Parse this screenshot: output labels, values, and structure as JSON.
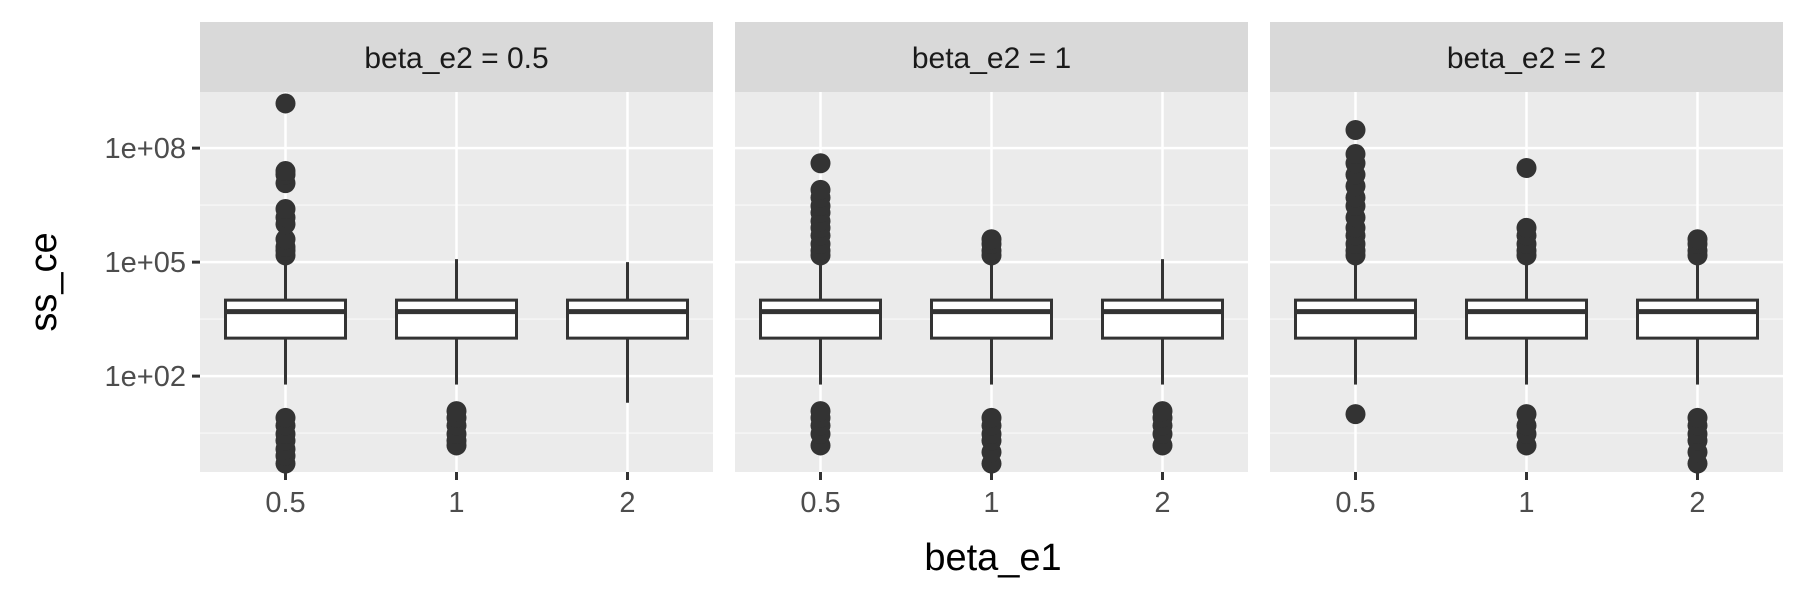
{
  "chart_data": {
    "type": "boxplot",
    "facet_variable": "beta_e2",
    "xlabel": "beta_e1",
    "ylabel": "ss_ce",
    "y_scale": "log10",
    "y_ticks": [
      100,
      100000,
      100000000
    ],
    "y_tick_labels": [
      "1e+02",
      "1e+05",
      "1e+08"
    ],
    "ylim": [
      0.3,
      3000000000
    ],
    "grid": true,
    "categories": [
      "0.5",
      "1",
      "2"
    ],
    "facets": [
      {
        "strip": "beta_e2 = 0.5",
        "boxes": [
          {
            "category": "0.5",
            "whisker_low": 60,
            "q1": 1000,
            "median": 5000,
            "q3": 10000,
            "whisker_high": 100000,
            "outliers": [
              0.5,
              0.8,
              1.2,
              2,
              3,
              5,
              8,
              150000,
              200000,
              250000,
              400000,
              1000000,
              1500000,
              2500000,
              12000000,
              20000000,
              25000000,
              1500000000
            ]
          },
          {
            "category": "1",
            "whisker_low": 60,
            "q1": 1000,
            "median": 5000,
            "q3": 10000,
            "whisker_high": 120000,
            "outliers": [
              1.5,
              2,
              3,
              5,
              8,
              12
            ]
          },
          {
            "category": "2",
            "whisker_low": 20,
            "q1": 1000,
            "median": 5000,
            "q3": 10000,
            "whisker_high": 100000,
            "outliers": []
          }
        ]
      },
      {
        "strip": "beta_e2 = 1",
        "boxes": [
          {
            "category": "0.5",
            "whisker_low": 60,
            "q1": 1000,
            "median": 5000,
            "q3": 10000,
            "whisker_high": 120000,
            "outliers": [
              1.5,
              3,
              5,
              8,
              12,
              150000,
              200000,
              300000,
              500000,
              800000,
              1200000,
              2000000,
              3000000,
              5000000,
              8000000,
              40000000
            ]
          },
          {
            "category": "1",
            "whisker_low": 60,
            "q1": 1000,
            "median": 5000,
            "q3": 10000,
            "whisker_high": 120000,
            "outliers": [
              0.5,
              1,
              2,
              3,
              5,
              8,
              150000,
              200000,
              300000,
              400000
            ]
          },
          {
            "category": "2",
            "whisker_low": 60,
            "q1": 1000,
            "median": 5000,
            "q3": 10000,
            "whisker_high": 120000,
            "outliers": [
              1.5,
              3,
              5,
              8,
              12
            ]
          }
        ]
      },
      {
        "strip": "beta_e2 = 2",
        "boxes": [
          {
            "category": "0.5",
            "whisker_low": 60,
            "q1": 1000,
            "median": 5000,
            "q3": 10000,
            "whisker_high": 120000,
            "outliers": [
              10,
              150000,
              200000,
              300000,
              500000,
              800000,
              1500000,
              3000000,
              5000000,
              10000000,
              20000000,
              40000000,
              70000000,
              300000000
            ]
          },
          {
            "category": "1",
            "whisker_low": 60,
            "q1": 1000,
            "median": 5000,
            "q3": 10000,
            "whisker_high": 120000,
            "outliers": [
              1.5,
              3,
              5,
              10,
              150000,
              200000,
              300000,
              500000,
              800000,
              30000000
            ]
          },
          {
            "category": "2",
            "whisker_low": 60,
            "q1": 1000,
            "median": 5000,
            "q3": 10000,
            "whisker_high": 120000,
            "outliers": [
              0.5,
              1,
              2,
              3,
              5,
              8,
              150000,
              200000,
              300000,
              400000
            ]
          }
        ]
      }
    ]
  },
  "colors": {
    "panel_background": "#ebebeb",
    "strip_background": "#d9d9d9",
    "grid_major": "#ffffff",
    "grid_minor": "#f5f5f5",
    "box_line": "#333333",
    "box_fill": "#ffffff",
    "tick_label": "#4d4d4d"
  }
}
